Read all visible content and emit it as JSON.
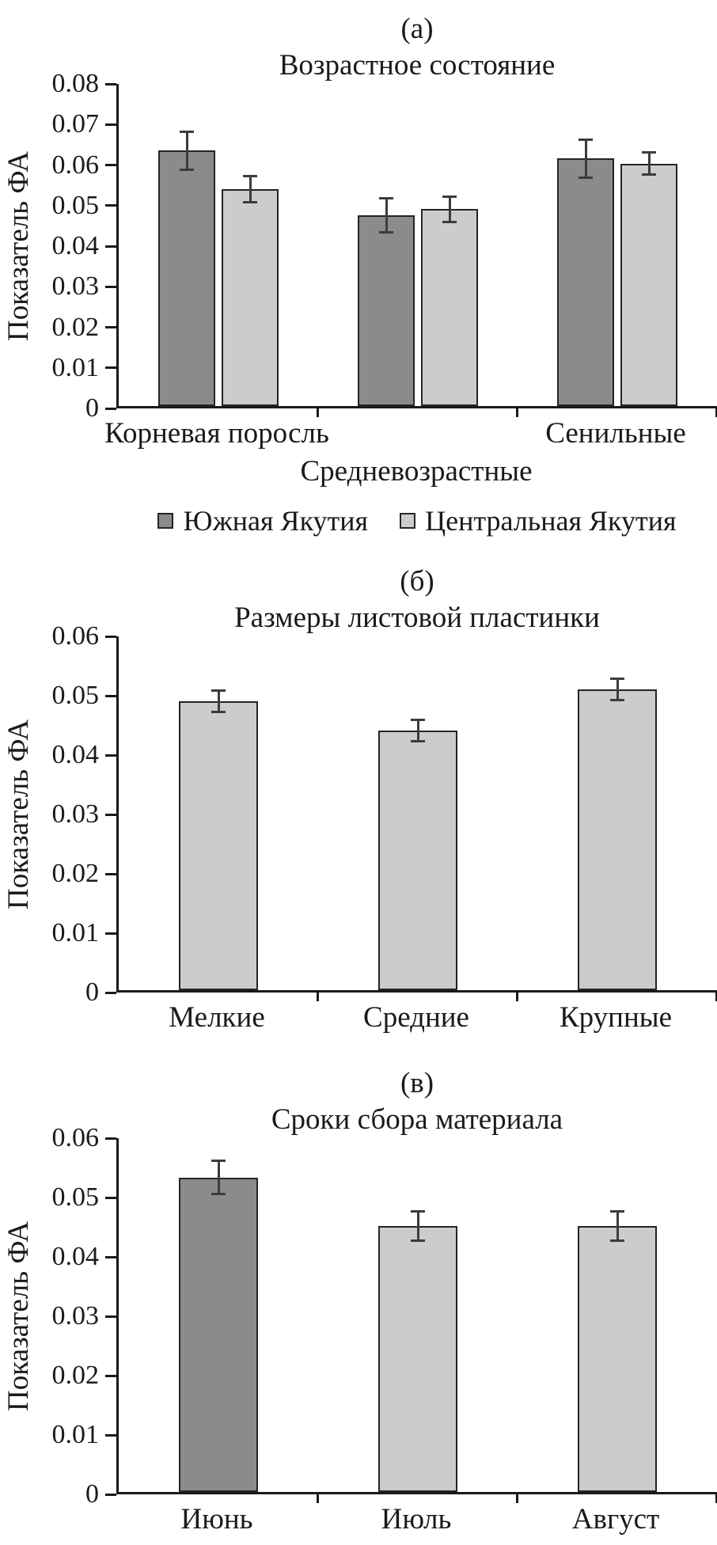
{
  "figure": {
    "background": "#ffffff",
    "description_labels": [
      "(а)",
      "(б)",
      "(в)"
    ]
  },
  "chart_data": [
    {
      "panel_label": "(а)",
      "type": "bar",
      "title": "Возрастное состояние",
      "xlabel": "",
      "ylabel": "Показатель ФА",
      "ylim": [
        0,
        0.08
      ],
      "ytick_step": 0.01,
      "grid": false,
      "legend_position": "bottom",
      "categories": [
        {
          "label": "Корневая поросль",
          "row": 0
        },
        {
          "label": "Средневозрастные",
          "row": 1
        },
        {
          "label": "Сенильные",
          "row": 0
        }
      ],
      "series": [
        {
          "name": "Южная Якутия",
          "color": "#8b8b8b",
          "values": [
            0.063,
            0.047,
            0.061
          ],
          "errors": [
            0.005,
            0.0045,
            0.005
          ]
        },
        {
          "name": "Центральная Якутия",
          "color": "#cccccc",
          "values": [
            0.0535,
            0.0485,
            0.0598
          ],
          "errors": [
            0.0035,
            0.0035,
            0.003
          ]
        }
      ]
    },
    {
      "panel_label": "(б)",
      "type": "bar",
      "title": "Размеры листовой пластинки",
      "xlabel": "",
      "ylabel": "Показатель ФА",
      "ylim": [
        0,
        0.06
      ],
      "ytick_step": 0.01,
      "grid": false,
      "legend_position": "none",
      "categories": [
        {
          "label": "Мелкие",
          "row": 0
        },
        {
          "label": "Средние",
          "row": 0
        },
        {
          "label": "Крупные",
          "row": 0
        }
      ],
      "series": [
        {
          "name": "",
          "color": "#cccccc",
          "values": [
            0.0487,
            0.0437,
            0.0507
          ],
          "errors": [
            0.002,
            0.002,
            0.002
          ]
        }
      ]
    },
    {
      "panel_label": "(в)",
      "type": "bar",
      "title": "Сроки сбора материала",
      "xlabel": "",
      "ylabel": "Показатель ФА",
      "ylim": [
        0,
        0.06
      ],
      "ytick_step": 0.01,
      "grid": false,
      "legend_position": "none",
      "categories": [
        {
          "label": "Июнь",
          "row": 0
        },
        {
          "label": "Июль",
          "row": 0
        },
        {
          "label": "Август",
          "row": 0
        }
      ],
      "series": [
        {
          "name": "",
          "color": "#cccccc",
          "colors": [
            "#8b8b8b",
            "#cccccc",
            "#cccccc"
          ],
          "values": [
            0.053,
            0.0448,
            0.0448
          ],
          "errors": [
            0.003,
            0.0027,
            0.0027
          ]
        }
      ]
    }
  ],
  "colors": {
    "south_yakutia_bar": "#8b8b8b",
    "central_yakutia_bar": "#cccccc",
    "axis": "#1a1a1a",
    "error_bar": "#3c3c3c",
    "text": "#1a1a1a"
  }
}
